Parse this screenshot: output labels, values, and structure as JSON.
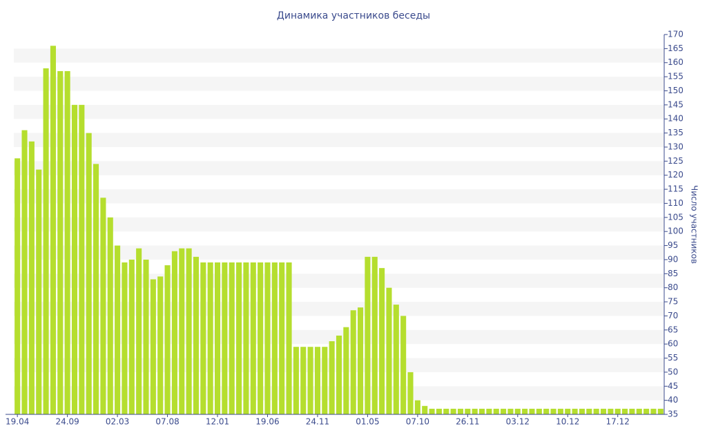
{
  "chart_data": {
    "type": "bar",
    "title": "Динамика участников беседы",
    "y_label": "Число участников",
    "categories": [
      "19.04",
      null,
      null,
      null,
      null,
      null,
      null,
      "24.09",
      null,
      null,
      null,
      null,
      null,
      null,
      "02.03",
      null,
      null,
      null,
      null,
      null,
      null,
      "07.08",
      null,
      null,
      null,
      null,
      null,
      null,
      "12.01",
      null,
      null,
      null,
      null,
      null,
      null,
      "19.06",
      null,
      null,
      null,
      null,
      null,
      null,
      "24.11",
      null,
      null,
      null,
      null,
      null,
      null,
      "01.05",
      null,
      null,
      null,
      null,
      null,
      null,
      "07.10",
      null,
      null,
      null,
      null,
      null,
      null,
      "26.11",
      null,
      null,
      null,
      null,
      null,
      null,
      "03.12",
      null,
      null,
      null,
      null,
      null,
      null,
      "10.12",
      null,
      null,
      null,
      null,
      null,
      null,
      "17.12",
      null,
      null,
      null,
      null,
      null,
      null
    ],
    "values": [
      126,
      136,
      132,
      122,
      158,
      166,
      157,
      157,
      145,
      145,
      135,
      124,
      112,
      105,
      95,
      89,
      90,
      94,
      90,
      83,
      84,
      88,
      93,
      94,
      94,
      91,
      89,
      89,
      89,
      89,
      89,
      89,
      89,
      89,
      89,
      89,
      89,
      89,
      89,
      59,
      59,
      59,
      59,
      59,
      61,
      63,
      66,
      72,
      73,
      91,
      91,
      87,
      80,
      74,
      70,
      50,
      40,
      38,
      37,
      37,
      37,
      37,
      37,
      37,
      37,
      37,
      37,
      37,
      37,
      37,
      37,
      37,
      37,
      37,
      37,
      37,
      37,
      37,
      37,
      37,
      37,
      37,
      37,
      37,
      37,
      37,
      37,
      37,
      37,
      37,
      37
    ],
    "color": "#b5de2e",
    "ylim": [
      35,
      170
    ],
    "yticks": [
      35,
      40,
      45,
      50,
      55,
      60,
      65,
      70,
      75,
      80,
      85,
      90,
      95,
      100,
      105,
      110,
      115,
      120,
      125,
      130,
      135,
      140,
      145,
      150,
      155,
      160,
      165,
      170
    ],
    "grid": true
  }
}
